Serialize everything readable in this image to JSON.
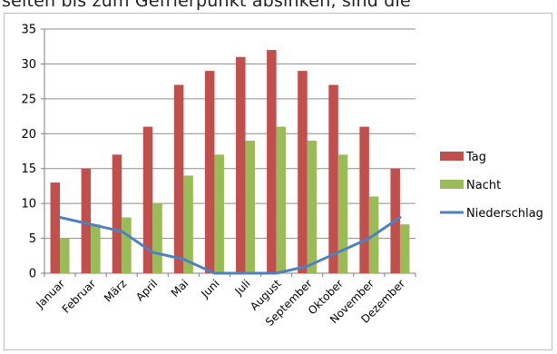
{
  "top_text": "seiten bis zum Gefrierpunkt absinken, sind die",
  "chart_data": {
    "type": "bar",
    "categories": [
      "Januar",
      "Februar",
      "März",
      "April",
      "Mai",
      "Juni",
      "Juli",
      "August",
      "September",
      "Oktober",
      "November",
      "Dezember"
    ],
    "series": [
      {
        "name": "Tag",
        "type": "bar",
        "color": "#c0504d",
        "values": [
          13,
          15,
          17,
          21,
          27,
          29,
          31,
          32,
          29,
          27,
          21,
          15
        ]
      },
      {
        "name": "Nacht",
        "type": "bar",
        "color": "#9bbb59",
        "values": [
          5,
          7,
          8,
          10,
          14,
          17,
          19,
          21,
          19,
          17,
          11,
          7
        ]
      },
      {
        "name": "Niederschlag",
        "type": "line",
        "color": "#4f81bd",
        "values": [
          8,
          7,
          6,
          3,
          2,
          0,
          0,
          0,
          1,
          3,
          5,
          8
        ]
      }
    ],
    "yticks": [
      "0",
      "5",
      "10",
      "15",
      "20",
      "25",
      "30",
      "35"
    ],
    "ylim": [
      0,
      35
    ],
    "grid": true,
    "legend_position": "right"
  }
}
